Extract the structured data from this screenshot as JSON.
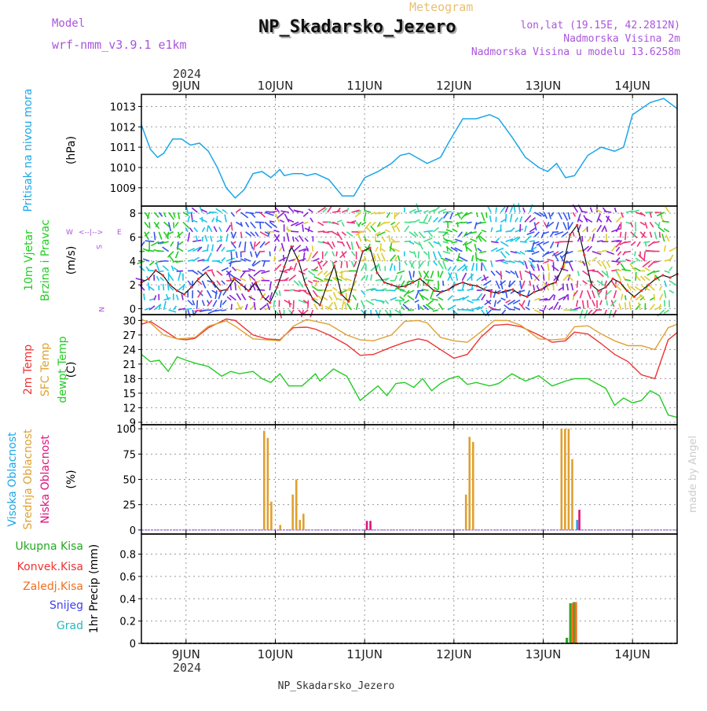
{
  "header": {
    "title": "NP_Skadarsko_Jezero",
    "subtitle": "Meteogram",
    "model_label": "Model",
    "model_value": "wrf-nmm_v3.9.1  e1km",
    "lonlat": "lon,lat (19.15E, 42.2812N)",
    "elevation": "Nadmorska Visina 2m",
    "model_elevation": "Nadmorska Visina u modelu 13.6258m",
    "footer": "NP_Skadarsko_Jezero",
    "watermark": "made by Angel",
    "year_top": "2024",
    "year_bottom": "2024"
  },
  "compass": {
    "n": "N",
    "s": "S",
    "e": "E",
    "w": "W",
    "cross": "<--|-->"
  },
  "colors": {
    "pressure": "#1ba6e8",
    "t2m": "#ee3333",
    "sfc": "#e0a030",
    "dew": "#22cc22",
    "high": "#1ba6e8",
    "mid": "#e0a030",
    "low": "#e0117f",
    "total": "#22aa22",
    "conv": "#ee3333",
    "frozen": "#f07020",
    "snow": "#4040ee",
    "graupel": "#22bbbb",
    "title_shadow": "#999999",
    "purple": "#aa55dd",
    "gold": "#e8c070",
    "black_curve": "#111111"
  },
  "chart_data": [
    {
      "type": "line",
      "ylabel": "(hPa)",
      "side_labels": [
        "Pritisak na nivou mora"
      ],
      "ylim": [
        1008.1,
        1013.6
      ],
      "yticks": [
        1009,
        1010,
        1011,
        1012,
        1013
      ],
      "x_days": [
        "9JUN",
        "10JUN",
        "11JUN",
        "12JUN",
        "13JUN",
        "14JUN"
      ],
      "x_day_values": [
        0.5,
        1.5,
        2.5,
        3.5,
        4.5,
        5.5
      ],
      "xlim": [
        0.0,
        6.0
      ],
      "grid": true,
      "series": [
        {
          "x": [
            0.0,
            0.1,
            0.18,
            0.25,
            0.35,
            0.45,
            0.55,
            0.65,
            0.75,
            0.85,
            0.95,
            1.05,
            1.15,
            1.25,
            1.35,
            1.45,
            1.55,
            1.6,
            1.7,
            1.8,
            1.85,
            1.95,
            2.1,
            2.25,
            2.38,
            2.5,
            2.65,
            2.8,
            2.9,
            3.0,
            3.2,
            3.35,
            3.45,
            3.6,
            3.75,
            3.9,
            4.0,
            4.15,
            4.3,
            4.45,
            4.55,
            4.65,
            4.75,
            4.85,
            5.0,
            5.15,
            5.3,
            5.4,
            5.5,
            5.6,
            5.7,
            5.85,
            6.0
          ],
          "values": [
            1012.1,
            1010.9,
            1010.5,
            1010.7,
            1011.4,
            1011.4,
            1011.1,
            1011.2,
            1010.8,
            1010.0,
            1009.0,
            1008.5,
            1008.9,
            1009.7,
            1009.8,
            1009.5,
            1009.9,
            1009.6,
            1009.7,
            1009.7,
            1009.6,
            1009.7,
            1009.4,
            1008.6,
            1008.6,
            1009.5,
            1009.8,
            1010.2,
            1010.6,
            1010.7,
            1010.2,
            1010.5,
            1011.3,
            1012.4,
            1012.4,
            1012.6,
            1012.4,
            1011.5,
            1010.5,
            1010.0,
            1009.8,
            1010.2,
            1009.5,
            1009.6,
            1010.6,
            1011.0,
            1010.8,
            1011.0,
            1012.6,
            1012.9,
            1013.2,
            1013.4,
            1012.9
          ]
        }
      ]
    },
    {
      "type": "scatter",
      "ylabel": "(m/s)",
      "side_labels": [
        "10m Vjetar",
        "Brzina i Pravac"
      ],
      "ylim": [
        -0.5,
        8.6
      ],
      "yticks": [
        0,
        2,
        4,
        6,
        8
      ],
      "xlim": [
        0.0,
        6.0
      ],
      "grid": true,
      "series": [
        {
          "x": [
            0.0,
            0.08,
            0.16,
            0.24,
            0.32,
            0.4,
            0.48,
            0.56,
            0.64,
            0.72,
            0.8,
            0.88,
            0.96,
            1.04,
            1.12,
            1.2,
            1.28,
            1.36,
            1.44,
            1.52,
            1.6,
            1.68,
            1.76,
            1.84,
            1.92,
            2.0,
            2.08,
            2.16,
            2.24,
            2.32,
            2.4,
            2.48,
            2.56,
            2.64,
            2.72,
            2.8,
            2.88,
            2.96,
            3.04,
            3.12,
            3.2,
            3.28,
            3.36,
            3.44,
            3.52,
            3.6,
            3.68,
            3.76,
            3.84,
            3.92,
            4.0,
            4.08,
            4.16,
            4.24,
            4.32,
            4.4,
            4.48,
            4.56,
            4.64,
            4.72,
            4.8,
            4.88,
            4.96,
            5.04,
            5.12,
            5.2,
            5.28,
            5.36,
            5.44,
            5.52,
            5.6,
            5.68,
            5.76,
            5.84,
            5.92,
            6.0
          ],
          "values": [
            2.2,
            2.5,
            3.2,
            2.8,
            2.0,
            1.5,
            1.2,
            1.8,
            2.5,
            3.0,
            2.2,
            1.5,
            1.6,
            2.5,
            2.0,
            1.5,
            2.2,
            1.0,
            0.5,
            1.8,
            3.5,
            5.2,
            4.0,
            2.0,
            0.8,
            0.3,
            2.0,
            3.6,
            1.2,
            0.6,
            2.8,
            4.8,
            5.1,
            3.0,
            2.2,
            2.0,
            1.8,
            1.9,
            2.2,
            2.5,
            2.0,
            1.5,
            1.4,
            1.6,
            2.0,
            2.2,
            2.0,
            1.9,
            1.6,
            1.4,
            1.3,
            1.5,
            1.6,
            1.2,
            1.0,
            1.4,
            1.6,
            2.0,
            2.2,
            3.5,
            6.2,
            7.0,
            4.5,
            2.0,
            1.5,
            1.8,
            2.5,
            2.2,
            1.5,
            1.0,
            1.5,
            2.0,
            2.5,
            2.8,
            2.6,
            2.9
          ]
        }
      ]
    },
    {
      "type": "line",
      "ylabel": "(C)",
      "side_labels": [
        "2m Temp",
        "SFC Temp",
        "dewpt Temp"
      ],
      "ylim": [
        8.5,
        31.2
      ],
      "yticks": [
        9,
        12,
        15,
        18,
        21,
        24,
        27,
        30
      ],
      "xlim": [
        0.0,
        6.0
      ],
      "grid": true,
      "series": [
        {
          "name": "2m Temp",
          "x": [
            0.0,
            0.1,
            0.25,
            0.4,
            0.5,
            0.6,
            0.75,
            0.95,
            1.05,
            1.25,
            1.4,
            1.55,
            1.7,
            1.85,
            1.95,
            2.1,
            2.3,
            2.45,
            2.6,
            2.8,
            2.95,
            3.1,
            3.2,
            3.35,
            3.5,
            3.65,
            3.8,
            3.95,
            4.1,
            4.25,
            4.45,
            4.6,
            4.75,
            4.85,
            5.0,
            5.15,
            5.3,
            5.45,
            5.6,
            5.75,
            5.9,
            6.0
          ],
          "values": [
            29.2,
            29.8,
            28.0,
            26.2,
            26.0,
            26.3,
            28.5,
            30.3,
            30.0,
            27.0,
            26.2,
            26.0,
            28.5,
            28.6,
            28.2,
            27.0,
            25.0,
            22.8,
            23.0,
            24.5,
            25.5,
            26.2,
            25.8,
            24.0,
            22.2,
            23.0,
            26.5,
            29.0,
            29.2,
            28.7,
            27.0,
            25.5,
            25.8,
            27.6,
            27.2,
            25.2,
            23.0,
            21.5,
            18.8,
            18.0,
            26.0,
            27.5
          ]
        },
        {
          "name": "SFC Temp",
          "x": [
            0.0,
            0.1,
            0.25,
            0.4,
            0.5,
            0.6,
            0.75,
            0.95,
            1.05,
            1.25,
            1.4,
            1.55,
            1.7,
            1.85,
            1.95,
            2.1,
            2.3,
            2.45,
            2.6,
            2.8,
            2.95,
            3.1,
            3.2,
            3.35,
            3.5,
            3.65,
            3.8,
            3.95,
            4.1,
            4.25,
            4.45,
            4.6,
            4.75,
            4.85,
            5.0,
            5.15,
            5.3,
            5.45,
            5.6,
            5.75,
            5.9,
            6.0
          ],
          "values": [
            30.2,
            29.5,
            27.0,
            26.2,
            26.3,
            26.5,
            28.8,
            29.9,
            28.8,
            26.2,
            26.0,
            25.8,
            28.8,
            30.2,
            29.8,
            29.2,
            27.0,
            26.0,
            25.8,
            27.0,
            29.8,
            30.0,
            29.5,
            26.5,
            25.8,
            25.5,
            27.6,
            30.0,
            30.0,
            29.0,
            26.2,
            26.0,
            26.2,
            28.7,
            28.9,
            27.2,
            25.8,
            24.8,
            24.8,
            24.0,
            28.5,
            29.2
          ]
        },
        {
          "name": "dewpt Temp",
          "x": [
            0.0,
            0.1,
            0.2,
            0.3,
            0.4,
            0.5,
            0.6,
            0.75,
            0.9,
            1.0,
            1.1,
            1.25,
            1.35,
            1.45,
            1.55,
            1.65,
            1.8,
            1.95,
            2.0,
            2.15,
            2.3,
            2.45,
            2.55,
            2.65,
            2.75,
            2.85,
            2.95,
            3.05,
            3.15,
            3.25,
            3.35,
            3.45,
            3.55,
            3.65,
            3.75,
            3.9,
            4.0,
            4.15,
            4.3,
            4.45,
            4.6,
            4.75,
            4.85,
            5.0,
            5.1,
            5.2,
            5.3,
            5.4,
            5.5,
            5.6,
            5.7,
            5.8,
            5.9,
            6.0
          ],
          "values": [
            23.0,
            21.5,
            21.8,
            19.5,
            22.5,
            21.8,
            21.2,
            20.5,
            18.5,
            19.5,
            19.0,
            19.5,
            18.0,
            17.2,
            19.0,
            16.5,
            16.5,
            19.0,
            17.5,
            20.0,
            18.5,
            13.5,
            15.0,
            16.5,
            14.5,
            17.0,
            17.2,
            16.2,
            18.0,
            15.5,
            17.0,
            18.0,
            18.5,
            16.8,
            17.2,
            16.5,
            17.0,
            19.0,
            17.5,
            18.6,
            16.5,
            17.5,
            18.0,
            18.0,
            17.0,
            16.0,
            12.5,
            14.0,
            13.0,
            13.5,
            15.5,
            14.5,
            10.5,
            10.0
          ]
        }
      ]
    },
    {
      "type": "bar",
      "ylabel": "(%)",
      "side_labels": [
        "Visoka Oblacnost",
        "Srednja Oblacnost",
        "Niska Oblacnost"
      ],
      "ylim": [
        -4,
        104
      ],
      "yticks": [
        0,
        25,
        50,
        75,
        100
      ],
      "xlim": [
        0.0,
        6.0
      ],
      "grid": true,
      "series": [
        {
          "name": "Srednja Oblacnost",
          "x": [
            1.375,
            1.415,
            1.455,
            1.555,
            1.695,
            1.735,
            1.775,
            1.815,
            3.635,
            3.675,
            3.715,
            4.705,
            4.745,
            4.785,
            4.825
          ],
          "values": [
            98,
            91,
            28,
            5,
            35,
            50,
            10,
            16,
            35,
            92,
            87,
            100,
            100,
            100,
            70
          ]
        },
        {
          "name": "Niska Oblacnost",
          "x": [
            2.525,
            2.565,
            4.905
          ],
          "values": [
            9,
            9,
            20
          ]
        },
        {
          "name": "Visoka Oblacnost",
          "x": [
            4.88
          ],
          "values": [
            10
          ]
        }
      ]
    },
    {
      "type": "bar",
      "ylabel": "1hr Precip (mm)",
      "side_labels": [
        "Ukupna Kisa",
        "Konvek.Kisa",
        "Zaledj.Kisa",
        "Snijeg",
        "Grad"
      ],
      "ylim": [
        0,
        0.98
      ],
      "yticks": [
        0,
        0.2,
        0.4,
        0.6,
        0.8
      ],
      "ytick_labels": [
        "0",
        "0.2",
        "0.4",
        "0.6",
        "0.8"
      ],
      "xlim": [
        0.0,
        6.0
      ],
      "grid": true,
      "series": [
        {
          "name": "Ukupna Kisa",
          "x": [
            4.765,
            4.805,
            4.845
          ],
          "values": [
            0.05,
            0.36,
            0.37
          ]
        },
        {
          "name": "Zaledj.Kisa",
          "x": [
            4.825,
            4.865
          ],
          "values": [
            0.36,
            0.37
          ]
        }
      ]
    }
  ]
}
